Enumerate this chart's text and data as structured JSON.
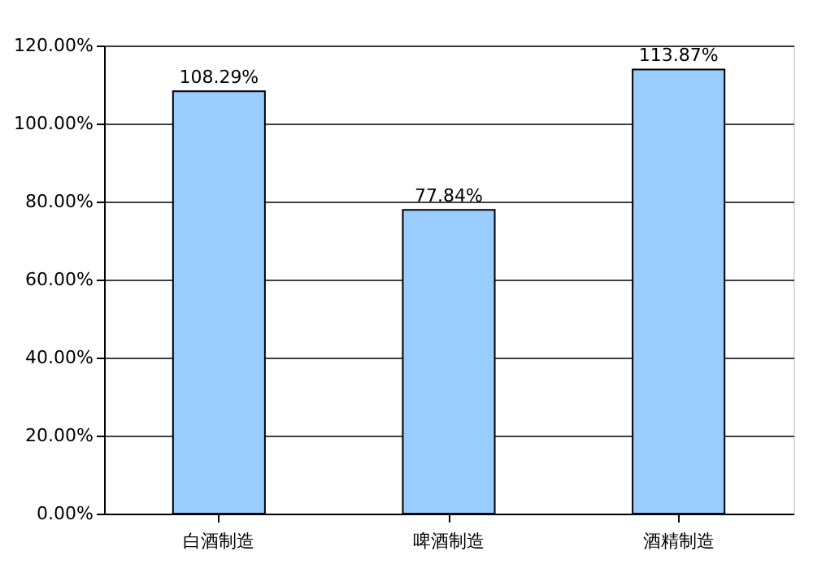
{
  "chart_data": {
    "type": "bar",
    "categories": [
      "白酒制造",
      "啤酒制造",
      "酒精制造"
    ],
    "values": [
      108.29,
      77.84,
      113.87
    ],
    "color": "#99ccff",
    "value_labels": [
      "108.29%",
      "77.84%",
      "113.87%"
    ],
    "ylim": [
      0,
      120
    ],
    "yticks": [
      {
        "value": 0,
        "label": "0.00%"
      },
      {
        "value": 20,
        "label": "20.00%"
      },
      {
        "value": 40,
        "label": "40.00%"
      },
      {
        "value": 60,
        "label": "60.00%"
      },
      {
        "value": 80,
        "label": "80.00%"
      },
      {
        "value": 100,
        "label": "100.00%"
      },
      {
        "value": 120,
        "label": "120.00%"
      }
    ],
    "grid": "y"
  }
}
